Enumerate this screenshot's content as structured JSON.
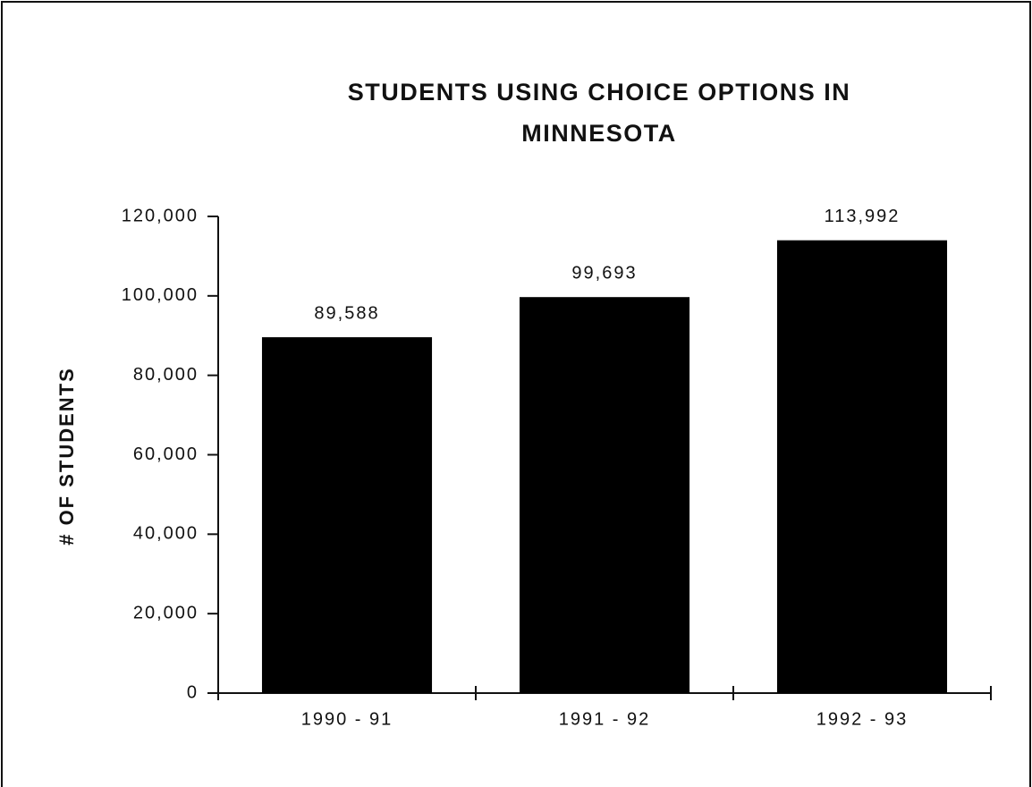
{
  "chart_data": {
    "type": "bar",
    "title": "STUDENTS USING CHOICE OPTIONS IN MINNESOTA",
    "ylabel": "# OF STUDENTS",
    "categories": [
      "1990 - 91",
      "1991 - 92",
      "1992 - 93"
    ],
    "values": [
      89588,
      99693,
      113992
    ],
    "value_labels": [
      "89,588",
      "99,693",
      "113,992"
    ],
    "color": "#000000",
    "ylim": [
      0,
      120000
    ],
    "yticks": [
      0,
      {
        "value": 20000,
        "label": "20,000"
      },
      {
        "value": 40000,
        "label": "40,000"
      },
      {
        "value": 60000,
        "label": "60,000"
      },
      {
        "value": 80000,
        "label": "80,000"
      },
      {
        "value": 100000,
        "label": "100,000"
      },
      {
        "value": 120000,
        "label": "120,000"
      }
    ],
    "grid": false
  }
}
